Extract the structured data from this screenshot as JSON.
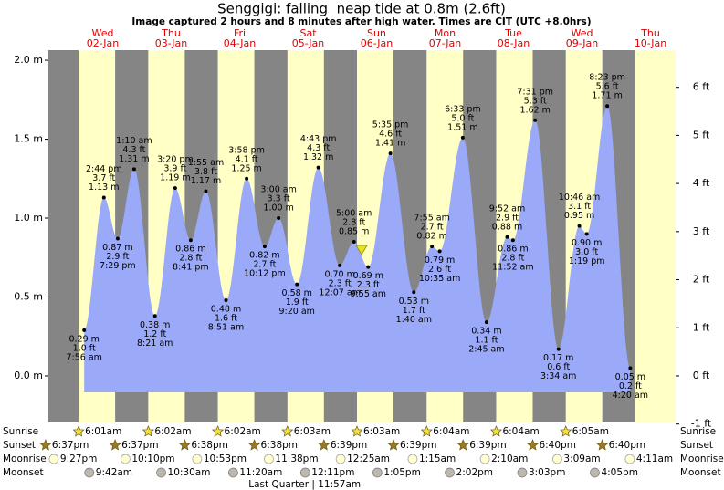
{
  "chart_data": {
    "type": "area",
    "title": "Senggigi: falling  neap tide at 0.8m (2.6ft)",
    "subtitle": "Image captured 2 hours and 8 minutes after high water. Times are CIT (UTC +8.0hrs)",
    "categories": [
      "02-Jan",
      "03-Jan",
      "04-Jan",
      "05-Jan",
      "06-Jan",
      "07-Jan",
      "08-Jan",
      "09-Jan",
      "10-Jan"
    ],
    "weekdays": [
      "Wed",
      "Thu",
      "Fri",
      "Sat",
      "Sun",
      "Mon",
      "Tue",
      "Wed",
      "Thu"
    ],
    "x": [
      "7:56 am",
      "2:44 pm",
      "7:29 pm",
      "1:10 am",
      "8:21 am",
      "3:20 pm",
      "8:41 pm",
      "1:55 am",
      "8:51 am",
      "3:58 pm",
      "10:12 pm",
      "3:00 am",
      "9:20 am",
      "4:43 pm",
      "12:07 am",
      "5:00 am",
      "9:55 am",
      "5:35 pm",
      "1:40 am",
      "7:55 am",
      "10:35 am",
      "6:33 pm",
      "2:45 am",
      "9:52 am",
      "11:52 am",
      "7:31 pm",
      "3:34 am",
      "10:46 am",
      "1:19 pm",
      "8:23 pm",
      "4:20 am"
    ],
    "series": [
      {
        "color": "#9aa9f8",
        "values": [
          0.29,
          1.13,
          0.87,
          1.31,
          0.38,
          1.19,
          0.86,
          1.17,
          0.48,
          1.25,
          0.82,
          1.0,
          0.58,
          1.32,
          0.7,
          0.85,
          0.69,
          1.41,
          0.53,
          0.82,
          0.79,
          1.51,
          0.34,
          0.88,
          0.86,
          1.62,
          0.17,
          0.95,
          0.9,
          1.71,
          0.05
        ],
        "value_labels": [
          "0.29 m",
          "1.13 m",
          "0.87 m",
          "1.31 m",
          "0.38 m",
          "1.19 m",
          "0.86 m",
          "1.17 m",
          "0.48 m",
          "1.25 m",
          "0.82 m",
          "1.00 m",
          "0.58 m",
          "1.32 m",
          "0.70 m",
          "0.85 m",
          "0.69 m",
          "1.41 m",
          "0.53 m",
          "0.82 m",
          "0.79 m",
          "1.51 m",
          "0.34 m",
          "0.88 m",
          "0.86 m",
          "1.62 m",
          "0.17 m",
          "0.95 m",
          "0.90 m",
          "1.71 m",
          "0.05 m"
        ]
      },
      {
        "axis": "y2",
        "values": [
          1.0,
          3.7,
          2.9,
          4.3,
          1.2,
          3.9,
          2.8,
          3.8,
          1.6,
          4.1,
          2.7,
          3.3,
          1.9,
          4.3,
          2.3,
          2.8,
          2.3,
          4.6,
          1.7,
          2.7,
          2.6,
          5.0,
          1.1,
          2.9,
          2.8,
          5.3,
          0.6,
          3.1,
          3.0,
          5.6,
          0.2
        ],
        "value_labels": [
          "1.0 ft",
          "3.7 ft",
          "2.9 ft",
          "4.3 ft",
          "1.2 ft",
          "3.9 ft",
          "2.8 ft",
          "3.8 ft",
          "1.6 ft",
          "4.1 ft",
          "2.7 ft",
          "3.3 ft",
          "1.9 ft",
          "4.3 ft",
          "2.3 ft",
          "2.8 ft",
          "2.3 ft",
          "4.6 ft",
          "1.7 ft",
          "2.7 ft",
          "2.6 ft",
          "5.0 ft",
          "1.1 ft",
          "2.9 ft",
          "2.8 ft",
          "5.3 ft",
          "0.6 ft",
          "3.1 ft",
          "3.0 ft",
          "5.6 ft",
          "0.2 ft"
        ]
      }
    ],
    "ylim": [
      -0.295,
      2.064
    ],
    "yticks": [
      {
        "value": 0,
        "label": "0.0 m"
      },
      {
        "value": 0.5,
        "label": "0.5 m"
      },
      {
        "value": 1,
        "label": "1.0 m"
      },
      {
        "value": 1.5,
        "label": "1.5 m"
      },
      {
        "value": 2,
        "label": "2.0 m"
      }
    ],
    "y2lim": [
      -0.968,
      6.772
    ],
    "y2ticks": [
      {
        "value": -1,
        "label": "-1 ft"
      },
      {
        "value": 0,
        "label": "0 ft"
      },
      {
        "value": 1,
        "label": "1 ft"
      },
      {
        "value": 2,
        "label": "2 ft"
      },
      {
        "value": 3,
        "label": "3 ft"
      },
      {
        "value": 4,
        "label": "4 ft"
      },
      {
        "value": 5,
        "label": "5 ft"
      },
      {
        "value": 6,
        "label": "6 ft"
      }
    ],
    "almanac": {
      "sunrise": {
        "label": "Sunrise",
        "times": [
          "6:01am",
          "6:02am",
          "6:02am",
          "6:03am",
          "6:03am",
          "6:04am",
          "6:04am",
          "6:05am"
        ]
      },
      "sunset": {
        "label": "Sunset",
        "times": [
          "6:37pm",
          "6:37pm",
          "6:38pm",
          "6:38pm",
          "6:39pm",
          "6:39pm",
          "6:39pm",
          "6:40pm",
          "6:40pm"
        ]
      },
      "moonrise": {
        "label": "Moonrise",
        "times": [
          "9:27pm",
          "10:10pm",
          "10:53pm",
          "11:38pm",
          "12:25am",
          "1:15am",
          "2:10am",
          "3:09am",
          "4:11am"
        ]
      },
      "moonset": {
        "label": "Moonset",
        "times": [
          "9:42am",
          "10:30am",
          "11:20am",
          "12:11pm",
          "1:05pm",
          "2:02pm",
          "3:03pm",
          "4:05pm"
        ]
      }
    },
    "moon_phase": "Last Quarter | 11:57am"
  }
}
